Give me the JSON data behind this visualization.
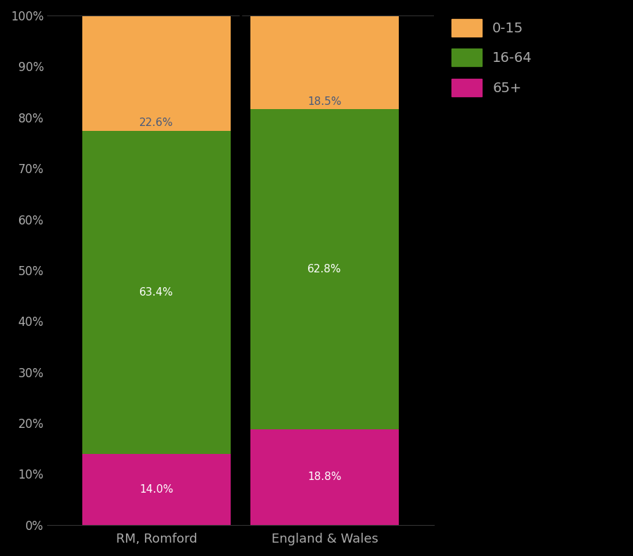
{
  "categories": [
    "RM, Romford",
    "England & Wales"
  ],
  "segments": {
    "65+": [
      14.0,
      18.8
    ],
    "16-64": [
      63.4,
      62.8
    ],
    "0-15": [
      22.6,
      18.5
    ]
  },
  "colors": {
    "65+": "#cc1a80",
    "16-64": "#4a8c1c",
    "0-15": "#f5a94e"
  },
  "label_colors": {
    "65+": "white",
    "16-64": "white",
    "0-15": "#4a5a7a"
  },
  "background_color": "#000000",
  "text_color": "#aaaaaa",
  "ylim": [
    0,
    100
  ],
  "legend_labels": [
    "0-15",
    "16-64",
    "65+"
  ],
  "bar_width": 0.88
}
